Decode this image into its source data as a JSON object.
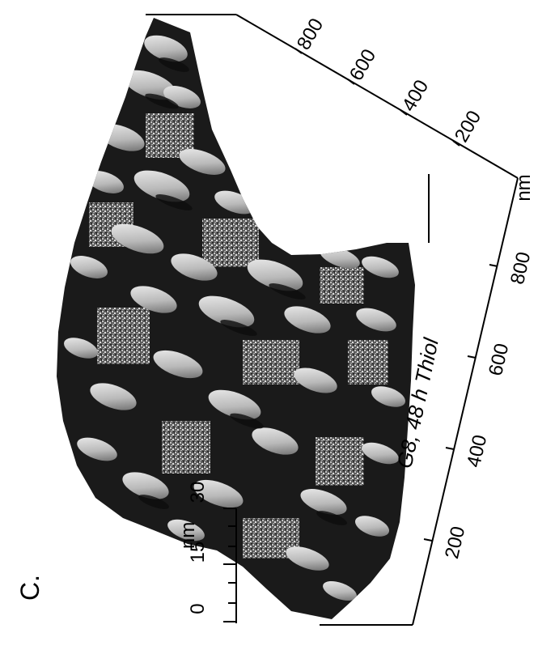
{
  "panel_label": "C.",
  "caption": "G8, 48 h Thiol",
  "axes": {
    "z": {
      "unit": "nm",
      "ticks": [
        "30",
        "15",
        "0"
      ]
    },
    "x": {
      "unit": "nm",
      "ticks": [
        "200",
        "400",
        "600",
        "800"
      ]
    },
    "y": {
      "unit": "nm",
      "ticks": [
        "200",
        "400",
        "600",
        "800"
      ]
    }
  },
  "colors": {
    "surface_dark": "#1a1a1a",
    "surface_light": "#d8d8d8",
    "axis": "#000000"
  }
}
